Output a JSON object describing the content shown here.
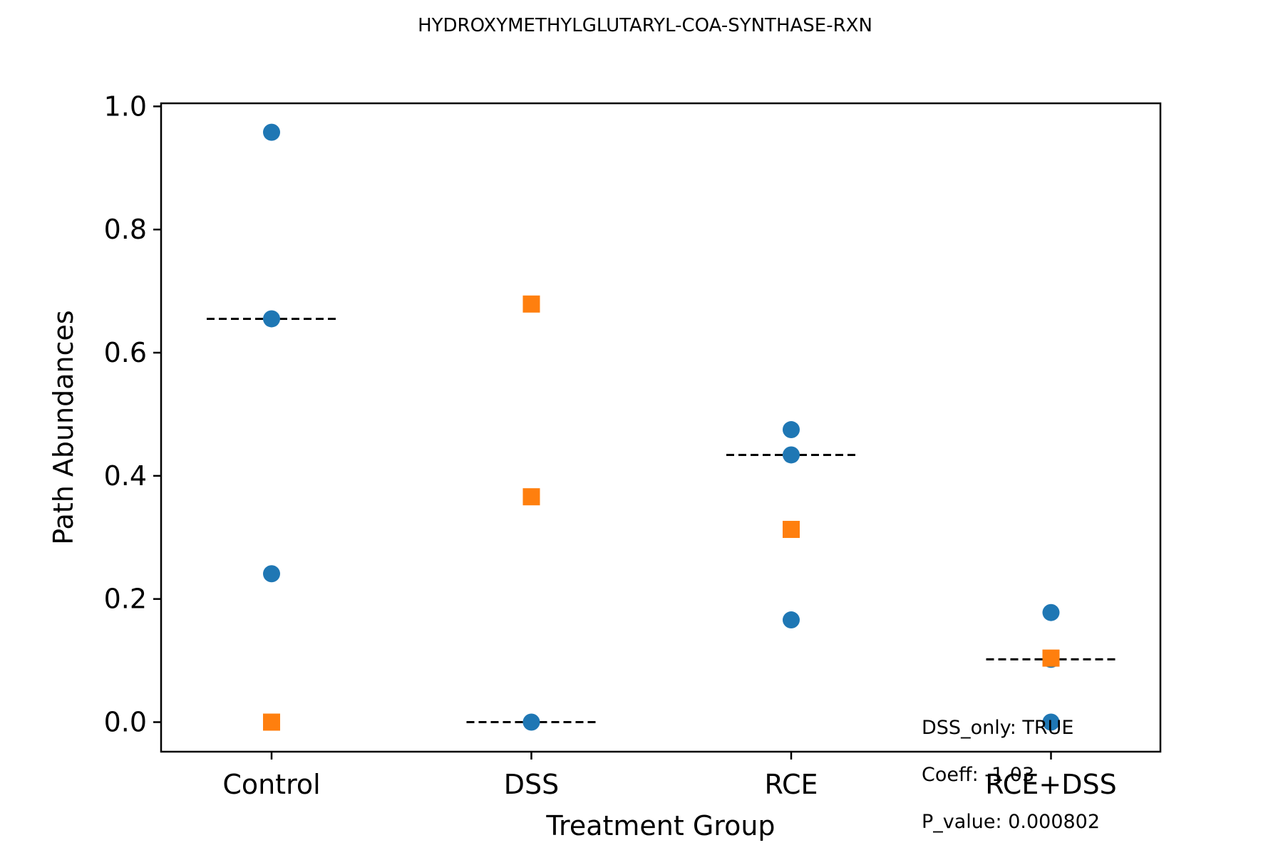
{
  "chart_data": {
    "type": "scatter",
    "title": "HYDROXYMETHYLGLUTARYL-COA-SYNTHASE-RXN",
    "xlabel": "Treatment Group",
    "ylabel": "Path Abundances",
    "categories": [
      "Control",
      "DSS",
      "RCE",
      "RCE+DSS"
    ],
    "ylim": [
      -0.048,
      1.005
    ],
    "yticks": [
      "0.0",
      "0.2",
      "0.4",
      "0.6",
      "0.8",
      "1.0"
    ],
    "grid": false,
    "series": [
      {
        "marker": "circle",
        "color": "#1f77b4",
        "points": [
          {
            "category": "Control",
            "values": [
              0.958,
              0.655,
              0.241
            ]
          },
          {
            "category": "DSS",
            "values": [
              0.0
            ]
          },
          {
            "category": "RCE",
            "values": [
              0.475,
              0.434,
              0.166
            ]
          },
          {
            "category": "RCE+DSS",
            "values": [
              0.178,
              0.102,
              0.0
            ]
          }
        ]
      },
      {
        "marker": "square",
        "color": "#ff7f0e",
        "points": [
          {
            "category": "Control",
            "values": [
              0.0
            ]
          },
          {
            "category": "DSS",
            "values": [
              0.679,
              0.366
            ]
          },
          {
            "category": "RCE",
            "values": [
              0.313
            ]
          },
          {
            "category": "RCE+DSS",
            "values": [
              0.104
            ]
          }
        ]
      }
    ],
    "medians": [
      {
        "category": "Control",
        "value": 0.655
      },
      {
        "category": "DSS",
        "value": 0.0
      },
      {
        "category": "RCE",
        "value": 0.434
      },
      {
        "category": "RCE+DSS",
        "value": 0.102
      }
    ],
    "median_line_color": "#000000",
    "annotations": [
      "DSS_only: TRUE",
      "Coeff: -1.03",
      "P_value: 0.000802"
    ]
  }
}
